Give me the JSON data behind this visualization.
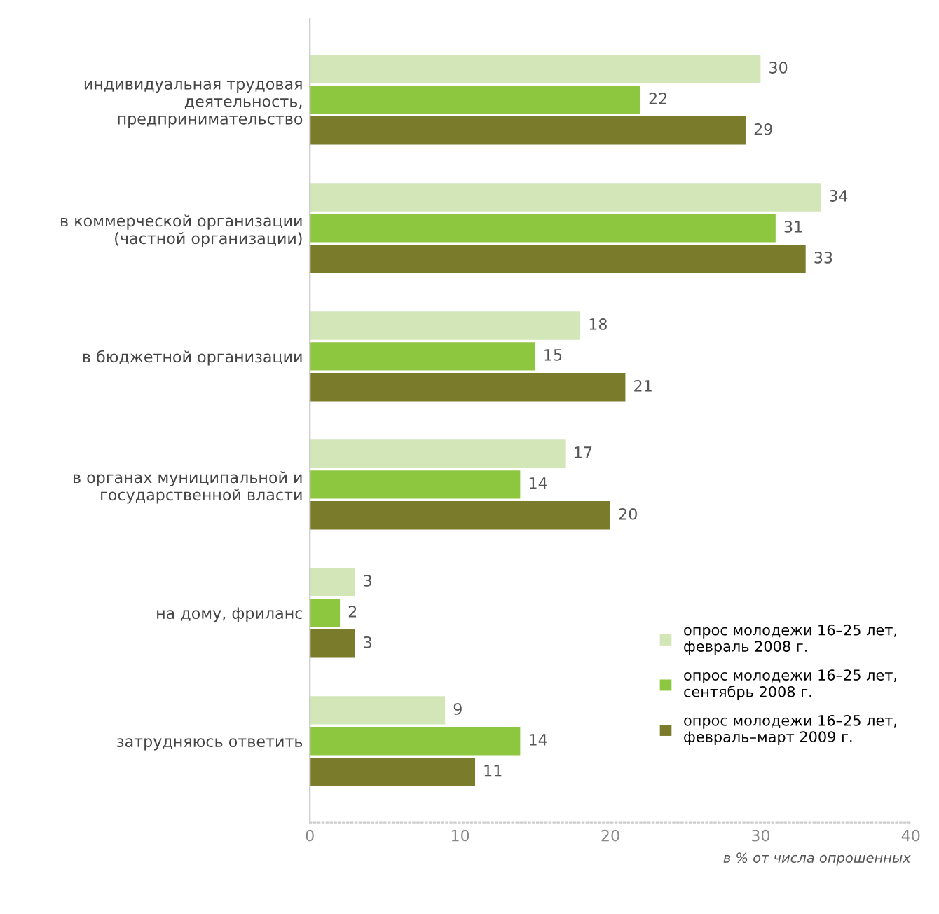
{
  "chart_data": {
    "type": "bar",
    "orientation": "horizontal",
    "xlabel": "в % от числа опрошенных",
    "categories": [
      "индивидуальная трудовая\nдеятельность,\nпредпринимательство",
      "в коммерческой организации\n(частной организации)",
      "в бюджетной организации",
      "в органах муниципальной и\nгосударственной власти",
      "на дому, фриланс",
      "затрудняюсь ответить"
    ],
    "series": [
      {
        "name": "опрос молодежи 16–25 лет,\nфевраль 2008 г.",
        "color": "#d3e6b8",
        "values": [
          30,
          34,
          18,
          17,
          3,
          9
        ]
      },
      {
        "name": "опрос молодежи 16–25 лет,\nсентябрь 2008 г.",
        "color": "#8dc63f",
        "values": [
          22,
          31,
          15,
          14,
          2,
          14
        ]
      },
      {
        "name": "опрос молодежи 16–25 лет,\nфевраль–март 2009 г.",
        "color": "#7b7b2c",
        "values": [
          29,
          33,
          21,
          20,
          3,
          11
        ]
      }
    ],
    "xlim": [
      0,
      40
    ],
    "xticks": [
      0,
      10,
      20,
      30,
      40
    ],
    "data_labels": true,
    "legend": "bottom right",
    "grid": false
  }
}
